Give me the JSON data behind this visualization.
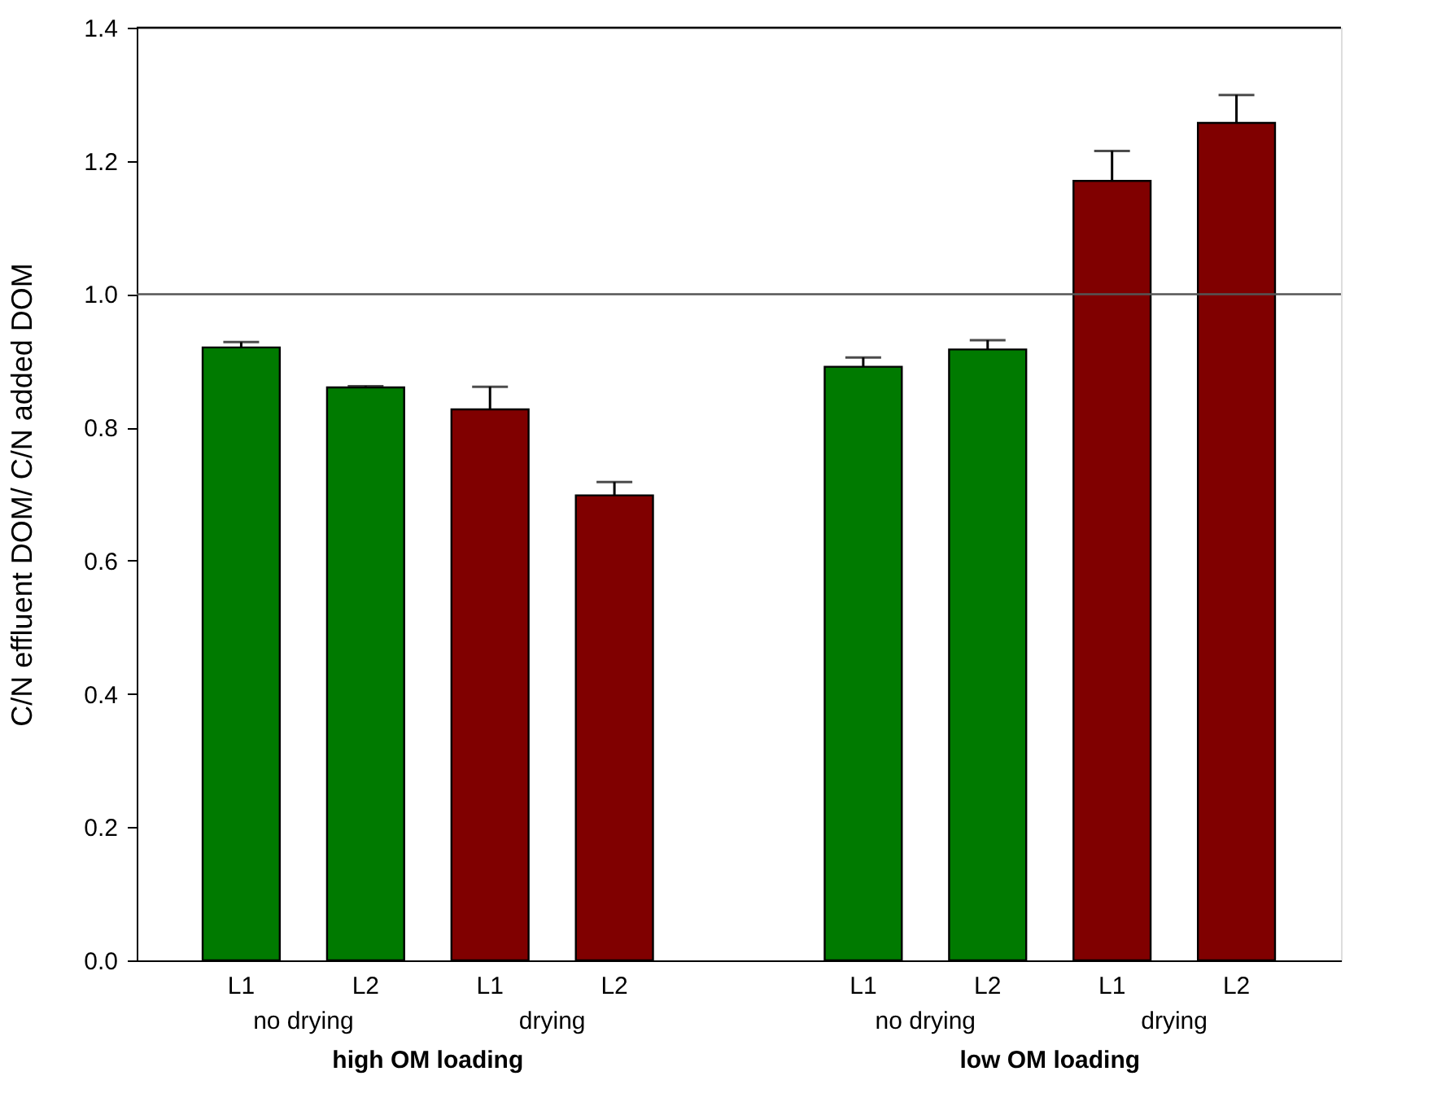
{
  "chart_data": {
    "type": "bar",
    "ylabel": "C/N effluent DOM/ C/N added DOM",
    "categories": [
      "L1",
      "L2",
      "L1",
      "L2",
      null,
      "L1",
      "L2",
      "L1",
      "L2"
    ],
    "values": [
      0.92,
      0.86,
      0.827,
      0.698,
      null,
      0.891,
      0.917,
      1.17,
      1.257
    ],
    "errors": [
      0.008,
      0.002,
      0.034,
      0.02,
      null,
      0.014,
      0.014,
      0.045,
      0.042
    ],
    "colors": [
      "#007a00",
      "#007a00",
      "#800000",
      "#800000",
      null,
      "#007a00",
      "#007a00",
      "#800000",
      "#800000"
    ],
    "ylim": [
      0,
      1.4
    ],
    "yticks": [
      {
        "value": 0,
        "label": "0.0"
      },
      0.2,
      0.4,
      0.6,
      0.8,
      {
        "value": 1,
        "label": "1.0"
      },
      1.2,
      1.4
    ],
    "ref_lines": [
      {
        "axis": "y",
        "value": 1.0,
        "color": "#555555"
      }
    ],
    "annotations": [
      "no drying",
      "drying",
      "high OM loading",
      "no drying",
      "drying",
      "low OM loading"
    ],
    "grid": false
  }
}
